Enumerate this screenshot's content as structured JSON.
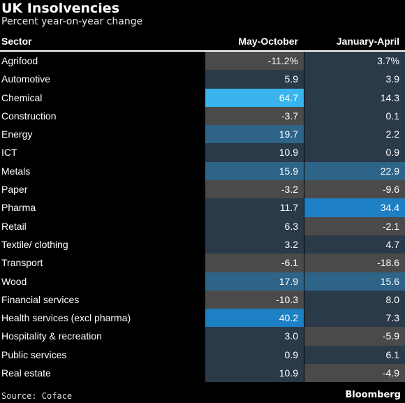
{
  "title": "UK Insolvencies",
  "subtitle": "Percent year-on-year change",
  "source": "Source: Coface",
  "brand": "Bloomberg",
  "chart_data": {
    "type": "table",
    "columns": [
      "Sector",
      "May-October",
      "January-April"
    ],
    "rows": [
      {
        "sector": "Agrifood",
        "may_oct": -11.2,
        "may_oct_label": "-11.2%",
        "jan_apr": 3.7,
        "jan_apr_label": "3.7%"
      },
      {
        "sector": "Automotive",
        "may_oct": 5.9,
        "may_oct_label": "5.9",
        "jan_apr": 3.9,
        "jan_apr_label": "3.9"
      },
      {
        "sector": "Chemical",
        "may_oct": 64.7,
        "may_oct_label": "64.7",
        "jan_apr": 14.3,
        "jan_apr_label": "14.3"
      },
      {
        "sector": "Construction",
        "may_oct": -3.7,
        "may_oct_label": "-3.7",
        "jan_apr": 0.1,
        "jan_apr_label": "0.1"
      },
      {
        "sector": "Energy",
        "may_oct": 19.7,
        "may_oct_label": "19.7",
        "jan_apr": 2.2,
        "jan_apr_label": "2.2"
      },
      {
        "sector": "ICT",
        "may_oct": 10.9,
        "may_oct_label": "10.9",
        "jan_apr": 0.9,
        "jan_apr_label": "0.9"
      },
      {
        "sector": "Metals",
        "may_oct": 15.9,
        "may_oct_label": "15.9",
        "jan_apr": 22.9,
        "jan_apr_label": "22.9"
      },
      {
        "sector": "Paper",
        "may_oct": -3.2,
        "may_oct_label": "-3.2",
        "jan_apr": -9.6,
        "jan_apr_label": "-9.6"
      },
      {
        "sector": "Pharma",
        "may_oct": 11.7,
        "may_oct_label": "11.7",
        "jan_apr": 34.4,
        "jan_apr_label": "34.4"
      },
      {
        "sector": "Retail",
        "may_oct": 6.3,
        "may_oct_label": "6.3",
        "jan_apr": -2.1,
        "jan_apr_label": "-2.1"
      },
      {
        "sector": "Textile/ clothing",
        "may_oct": 3.2,
        "may_oct_label": "3.2",
        "jan_apr": 4.7,
        "jan_apr_label": "4.7"
      },
      {
        "sector": "Transport",
        "may_oct": -6.1,
        "may_oct_label": "-6.1",
        "jan_apr": -18.6,
        "jan_apr_label": "-18.6"
      },
      {
        "sector": "Wood",
        "may_oct": 17.9,
        "may_oct_label": "17.9",
        "jan_apr": 15.6,
        "jan_apr_label": "15.6"
      },
      {
        "sector": "Financial services",
        "may_oct": -10.3,
        "may_oct_label": "-10.3",
        "jan_apr": 8.0,
        "jan_apr_label": "8.0"
      },
      {
        "sector": "Health services (excl pharma)",
        "may_oct": 40.2,
        "may_oct_label": "40.2",
        "jan_apr": 7.3,
        "jan_apr_label": "7.3"
      },
      {
        "sector": "Hospitality & recreation",
        "may_oct": 3.0,
        "may_oct_label": "3.0",
        "jan_apr": -5.9,
        "jan_apr_label": "-5.9"
      },
      {
        "sector": "Public services",
        "may_oct": 0.9,
        "may_oct_label": "0.9",
        "jan_apr": 6.1,
        "jan_apr_label": "6.1"
      },
      {
        "sector": "Real estate",
        "may_oct": 10.9,
        "may_oct_label": "10.9",
        "jan_apr": -4.9,
        "jan_apr_label": "-4.9"
      }
    ],
    "colors": {
      "negative": "#4a4a4a",
      "low": "#2b3a49",
      "mid": "#2d6487",
      "strong": "#1d7fc4",
      "high": "#3ab4ee"
    }
  }
}
